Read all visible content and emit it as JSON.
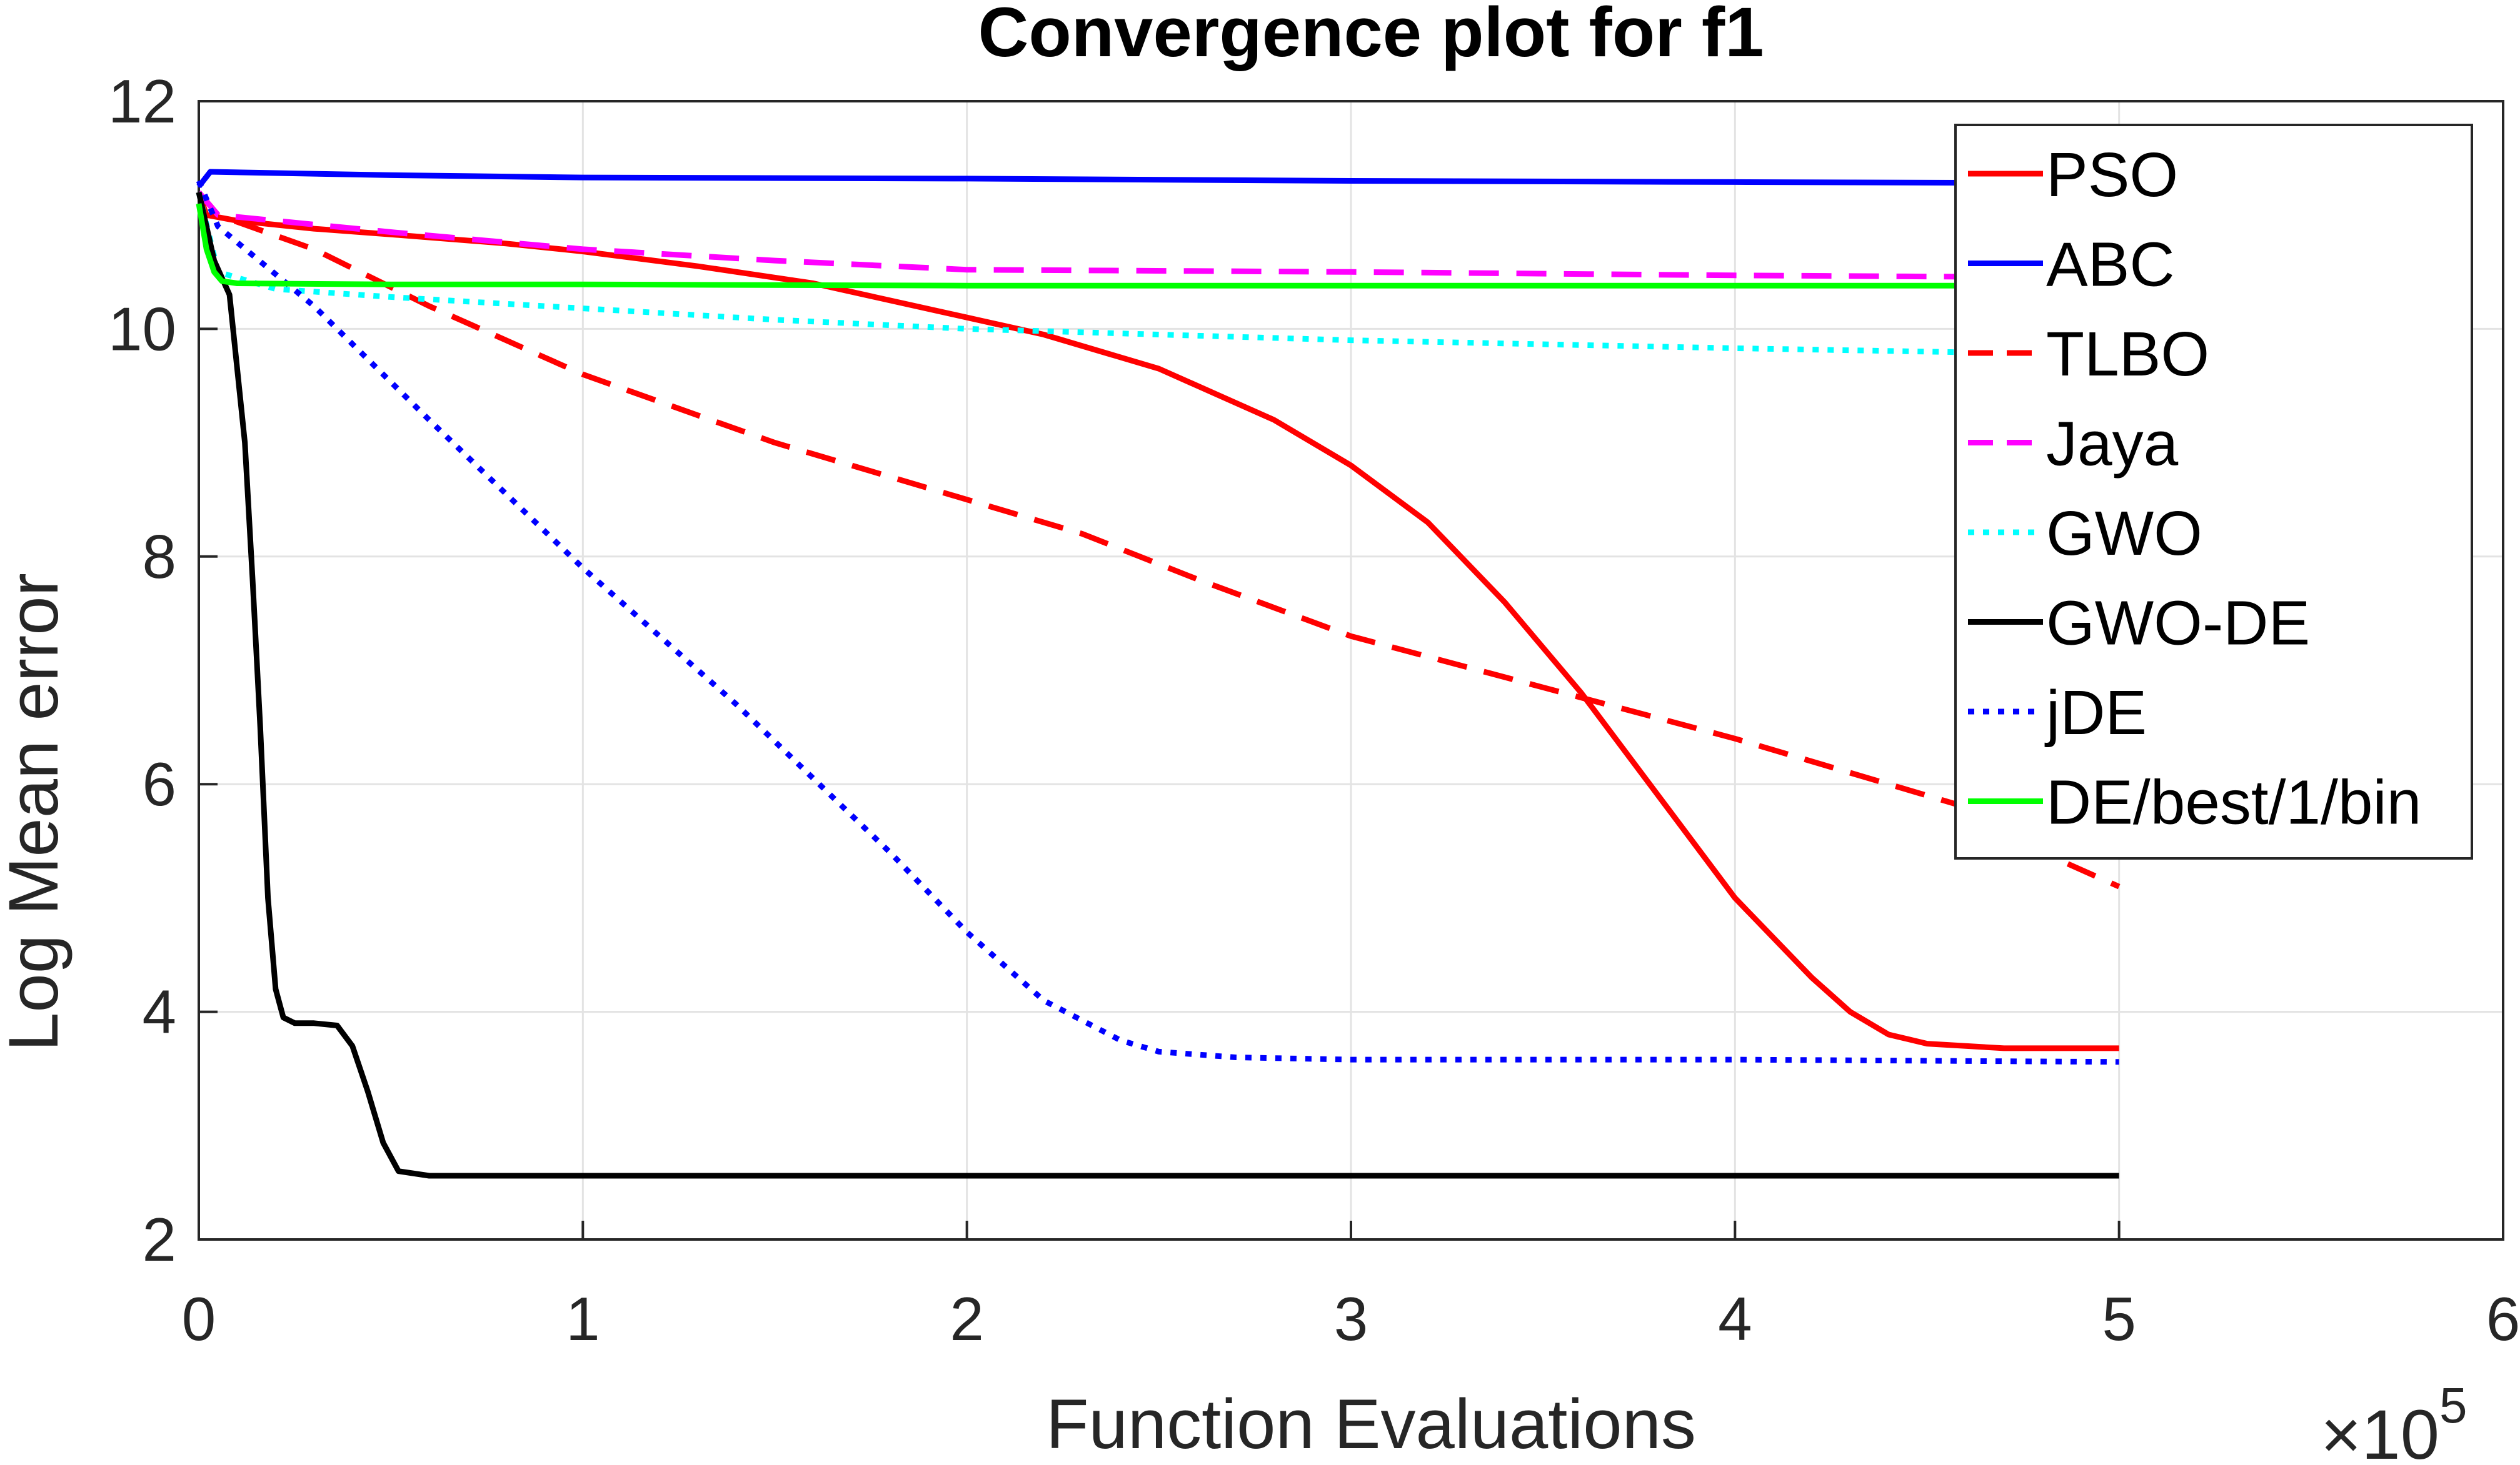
{
  "chart_data": {
    "type": "line",
    "title": "Convergence plot for f1",
    "xlabel": "Function Evaluations",
    "ylabel": "Log Mean error",
    "x_multiplier": "×10",
    "x_multiplier_exp": "5",
    "xlim": [
      0,
      6
    ],
    "ylim": [
      2,
      12
    ],
    "xticks": [
      0,
      1,
      2,
      3,
      4,
      5,
      6
    ],
    "yticks": [
      2,
      4,
      6,
      8,
      10,
      12
    ],
    "xtick_labels": [
      "0",
      "1",
      "2",
      "3",
      "4",
      "5",
      "6"
    ],
    "ytick_labels": [
      "2",
      "4",
      "6",
      "8",
      "10",
      "12"
    ],
    "grid": true,
    "legend_location": "top-right",
    "series": [
      {
        "name": "PSO",
        "color": "#ff0000",
        "style": "solid",
        "x": [
          0,
          0.02,
          0.1,
          0.3,
          0.5,
          0.8,
          1.0,
          1.3,
          1.6,
          1.8,
          2.0,
          2.2,
          2.5,
          2.8,
          3.0,
          3.2,
          3.4,
          3.6,
          3.8,
          4.0,
          4.2,
          4.3,
          4.4,
          4.5,
          4.7,
          5.0
        ],
        "y": [
          11.2,
          11.0,
          10.95,
          10.88,
          10.83,
          10.75,
          10.68,
          10.55,
          10.4,
          10.25,
          10.1,
          9.95,
          9.65,
          9.2,
          8.8,
          8.3,
          7.6,
          6.8,
          5.9,
          5.0,
          4.3,
          4.0,
          3.8,
          3.72,
          3.68,
          3.68
        ]
      },
      {
        "name": "ABC",
        "color": "#0000ff",
        "style": "solid",
        "x": [
          0,
          0.03,
          0.5,
          1.0,
          2.0,
          3.0,
          4.0,
          5.0
        ],
        "y": [
          11.25,
          11.38,
          11.35,
          11.33,
          11.32,
          11.3,
          11.29,
          11.28
        ]
      },
      {
        "name": "TLBO",
        "color": "#ff0000",
        "style": "dashed",
        "x": [
          0,
          0.05,
          0.3,
          0.6,
          1.0,
          1.5,
          2.0,
          2.3,
          2.6,
          3.0,
          3.5,
          4.0,
          4.3,
          4.6,
          4.8,
          5.0
        ],
        "y": [
          11.2,
          11.0,
          10.7,
          10.2,
          9.6,
          9.0,
          8.5,
          8.2,
          7.8,
          7.3,
          6.85,
          6.4,
          6.1,
          5.8,
          5.4,
          5.1
        ]
      },
      {
        "name": "Jaya",
        "color": "#ff00ff",
        "style": "dashed",
        "x": [
          0,
          0.05,
          0.5,
          1.0,
          1.5,
          2.0,
          3.0,
          4.0,
          5.0
        ],
        "y": [
          11.2,
          11.0,
          10.85,
          10.7,
          10.6,
          10.52,
          10.5,
          10.47,
          10.45
        ]
      },
      {
        "name": "GWO",
        "color": "#00ffff",
        "style": "dotted",
        "x": [
          0,
          0.05,
          0.2,
          0.5,
          1.0,
          1.5,
          2.0,
          3.0,
          4.0,
          5.0
        ],
        "y": [
          11.2,
          10.5,
          10.35,
          10.28,
          10.18,
          10.08,
          10.0,
          9.9,
          9.83,
          9.77
        ]
      },
      {
        "name": "GWO-DE",
        "color": "#000000",
        "style": "solid",
        "x": [
          0,
          0.04,
          0.08,
          0.12,
          0.14,
          0.16,
          0.18,
          0.2,
          0.22,
          0.25,
          0.3,
          0.36,
          0.4,
          0.44,
          0.48,
          0.52,
          0.6,
          1.0,
          5.0
        ],
        "y": [
          11.2,
          10.6,
          10.3,
          9.0,
          7.8,
          6.5,
          5.0,
          4.2,
          3.95,
          3.9,
          3.9,
          3.88,
          3.7,
          3.3,
          2.85,
          2.6,
          2.56,
          2.56,
          2.56
        ]
      },
      {
        "name": "jDE",
        "color": "#0000ff",
        "style": "dotted",
        "x": [
          0,
          0.05,
          0.3,
          0.6,
          1.0,
          1.4,
          1.8,
          2.0,
          2.2,
          2.4,
          2.5,
          2.7,
          3.0,
          4.0,
          5.0
        ],
        "y": [
          11.3,
          10.9,
          10.2,
          9.2,
          7.9,
          6.7,
          5.4,
          4.7,
          4.1,
          3.75,
          3.65,
          3.6,
          3.58,
          3.58,
          3.56
        ]
      },
      {
        "name": "DE/best/1/bin",
        "color": "#00ff00",
        "style": "solid",
        "x": [
          0,
          0.02,
          0.04,
          0.06,
          0.1,
          0.5,
          1.0,
          2.0,
          3.0,
          4.0,
          5.0
        ],
        "y": [
          11.1,
          10.7,
          10.5,
          10.42,
          10.4,
          10.39,
          10.39,
          10.38,
          10.38,
          10.38,
          10.38
        ]
      }
    ]
  }
}
